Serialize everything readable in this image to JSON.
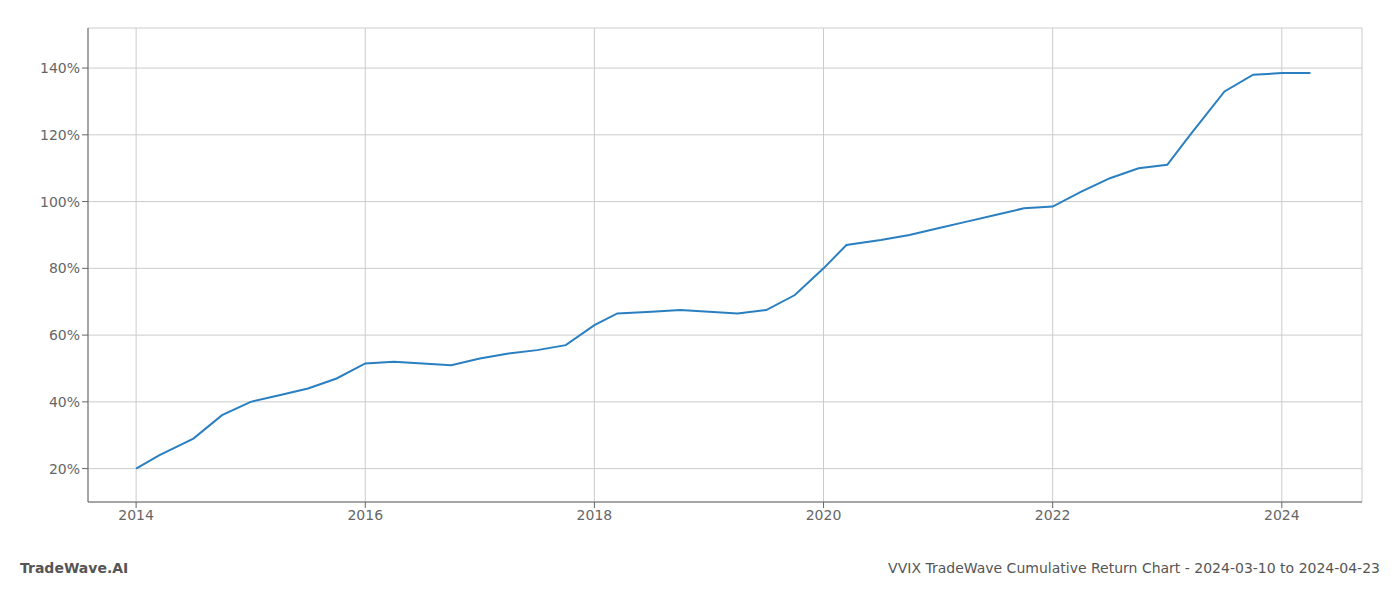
{
  "chart_data": {
    "type": "line",
    "title": "VVIX TradeWave Cumulative Return Chart - 2024-03-10 to 2024-04-23",
    "annotations": [
      "TradeWave.AI"
    ],
    "x": [
      2014.0,
      2014.2,
      2014.5,
      2014.75,
      2015.0,
      2015.25,
      2015.5,
      2015.75,
      2016.0,
      2016.25,
      2016.5,
      2016.75,
      2017.0,
      2017.25,
      2017.5,
      2017.75,
      2018.0,
      2018.2,
      2018.5,
      2018.75,
      2019.0,
      2019.25,
      2019.5,
      2019.75,
      2020.0,
      2020.2,
      2020.5,
      2020.75,
      2021.0,
      2021.25,
      2021.5,
      2021.75,
      2022.0,
      2022.25,
      2022.5,
      2022.75,
      2023.0,
      2023.2,
      2023.5,
      2023.75,
      2024.0,
      2024.25
    ],
    "values": [
      20.0,
      24.0,
      29.0,
      36.0,
      40.0,
      42.0,
      44.0,
      47.0,
      51.5,
      52.0,
      51.5,
      51.0,
      53.0,
      54.5,
      55.5,
      57.0,
      63.0,
      66.5,
      67.0,
      67.5,
      67.0,
      66.5,
      67.5,
      72.0,
      80.0,
      87.0,
      88.5,
      90.0,
      92.0,
      94.0,
      96.0,
      98.0,
      98.5,
      103.0,
      107.0,
      110.0,
      111.0,
      120.0,
      133.0,
      138.0,
      138.5,
      138.5
    ],
    "color": "#2a7fc1",
    "xlim": [
      2013.58,
      2024.7
    ],
    "ylim": [
      10.0,
      152.0
    ],
    "xticks": [
      2014,
      2016,
      2018,
      2020,
      2022,
      2024
    ],
    "yticks": [
      {
        "value": 20,
        "label": "20%"
      },
      {
        "value": 40,
        "label": "40%"
      },
      {
        "value": 60,
        "label": "60%"
      },
      {
        "value": 80,
        "label": "80%"
      },
      {
        "value": 100,
        "label": "100%"
      },
      {
        "value": 120,
        "label": "120%"
      },
      {
        "value": 140,
        "label": "140%"
      }
    ],
    "grid": true
  }
}
